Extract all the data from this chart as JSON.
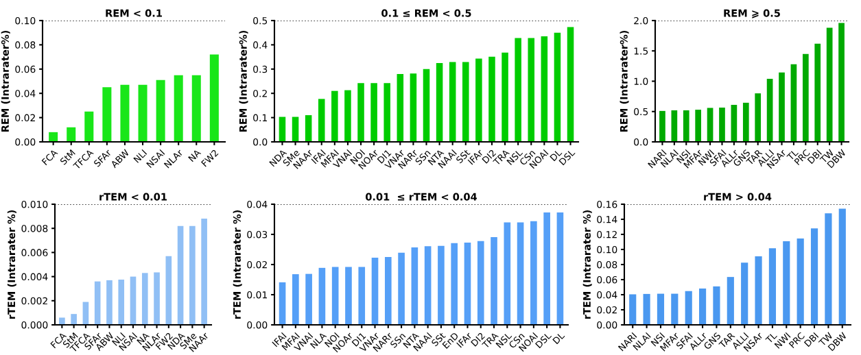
{
  "chart_data": [
    {
      "type": "bar",
      "title": "REM < 0.1",
      "ylabel": "REM (Intrarater%)",
      "color": "#19e619",
      "categories": [
        "FCA",
        "StM",
        "TFCA",
        "SFAr",
        "ABW",
        "NLI",
        "NSAI",
        "NLAr",
        "NA",
        "FW2"
      ],
      "values": [
        0.008,
        0.012,
        0.025,
        0.045,
        0.047,
        0.047,
        0.051,
        0.055,
        0.055,
        0.072
      ],
      "ylim": [
        0,
        0.1
      ],
      "yticks": [
        {
          "value": 0,
          "label": "0.00"
        },
        {
          "value": 0.02,
          "label": "0.02"
        },
        {
          "value": 0.04,
          "label": "0.04"
        },
        {
          "value": 0.06,
          "label": "0.06"
        },
        {
          "value": 0.08,
          "label": "0.08"
        },
        {
          "value": 0.1,
          "label": "0.10"
        }
      ],
      "ref_lines": [
        {
          "axis": "y",
          "value": 0.1,
          "line_style": "dotted",
          "color": "#000000"
        }
      ]
    },
    {
      "type": "bar",
      "title": "0.1 ≤ REM < 0.5",
      "ylabel": "REM (Intrarater%)",
      "color": "#00cc00",
      "categories": [
        "NDA",
        "SMe",
        "NAAr",
        "IFAI",
        "MFAI",
        "VNAI",
        "NOI",
        "NOAr",
        "DI1",
        "VNAr",
        "NARr",
        "SSn",
        "NTA",
        "NAAI",
        "SSt",
        "IFAr",
        "DI2",
        "TRA",
        "NSL",
        "CSn",
        "NOAI",
        "DL",
        "DSL"
      ],
      "values": [
        0.103,
        0.103,
        0.11,
        0.177,
        0.21,
        0.213,
        0.242,
        0.242,
        0.242,
        0.28,
        0.282,
        0.3,
        0.325,
        0.329,
        0.329,
        0.343,
        0.351,
        0.368,
        0.428,
        0.428,
        0.435,
        0.45,
        0.473
      ],
      "ylim": [
        0,
        0.5
      ],
      "yticks": [
        {
          "value": 0,
          "label": "0.0"
        },
        0.1,
        0.2,
        0.3,
        0.4,
        0.5
      ],
      "ref_lines": [
        {
          "axis": "y",
          "value": 0.5,
          "line_style": "dotted",
          "color": "#000000"
        }
      ]
    },
    {
      "type": "bar",
      "title": "REM ⩾ 0.5",
      "ylabel": "REM (Intrarater%)",
      "color": "#00aa00",
      "categories": [
        "NARI",
        "NLAI",
        "NSI",
        "MFAr",
        "NWI",
        "SFAI",
        "ALLr",
        "GNS",
        "TAR",
        "ALLI",
        "NSAr",
        "TL",
        "PRC",
        "DBI",
        "TW",
        "DBW"
      ],
      "values": [
        0.51,
        0.52,
        0.52,
        0.53,
        0.56,
        0.565,
        0.61,
        0.645,
        0.8,
        1.04,
        1.145,
        1.28,
        1.45,
        1.62,
        1.88,
        1.96
      ],
      "ylim": [
        0,
        2.0
      ],
      "yticks": [
        {
          "value": 0,
          "label": "0.0"
        },
        0.5,
        {
          "value": 1,
          "label": "1.0"
        },
        1.5,
        {
          "value": 2,
          "label": "2.0"
        }
      ],
      "ref_lines": [
        {
          "axis": "y",
          "value": 2.0,
          "line_style": "dotted",
          "color": "#000000"
        }
      ]
    },
    {
      "type": "bar",
      "title": "rTEM < 0.01",
      "ylabel": "rTEM (Intrarater %)",
      "color": "#90bff5",
      "categories": [
        "FCA",
        "StM",
        "TFCA",
        "SFAr",
        "ABW",
        "NLI",
        "NSAI",
        "NA",
        "NLAr",
        "FW2",
        "NDA",
        "SMe",
        "NAAr"
      ],
      "values": [
        0.0006,
        0.0009,
        0.0019,
        0.0036,
        0.0037,
        0.00375,
        0.004,
        0.0043,
        0.00435,
        0.0057,
        0.0082,
        0.0082,
        0.0088
      ],
      "ylim": [
        0,
        0.01
      ],
      "yticks": [
        {
          "value": 0,
          "label": "0.000"
        },
        {
          "value": 0.002,
          "label": "0.002"
        },
        {
          "value": 0.004,
          "label": "0.004"
        },
        {
          "value": 0.006,
          "label": "0.006"
        },
        {
          "value": 0.008,
          "label": "0.008"
        },
        {
          "value": 0.01,
          "label": "0.010"
        }
      ],
      "ref_lines": [
        {
          "axis": "y",
          "value": 0.01,
          "line_style": "dotted",
          "color": "#000000"
        }
      ]
    },
    {
      "type": "bar",
      "title": "0.01  ≤ rTEM < 0.04",
      "ylabel": "rTEM (Intrarater %)",
      "color": "#559ff7",
      "categories": [
        "IFAI",
        "MFAI",
        "VNAI",
        "NLA",
        "NOI",
        "NOAr",
        "DI1",
        "VNAr",
        "NARr",
        "SSn",
        "NTA",
        "NAAI",
        "SSt",
        "EnD",
        "IFAr",
        "DI2",
        "TRA",
        "NSL",
        "CSn",
        "NOAI",
        "DSL",
        "DL"
      ],
      "values": [
        0.0141,
        0.0168,
        0.0169,
        0.0189,
        0.0192,
        0.0192,
        0.0192,
        0.0223,
        0.0225,
        0.0239,
        0.0257,
        0.0261,
        0.0262,
        0.0271,
        0.0273,
        0.0278,
        0.0291,
        0.034,
        0.034,
        0.0344,
        0.0373,
        0.0373
      ],
      "ylim": [
        0,
        0.04
      ],
      "yticks": [
        {
          "value": 0,
          "label": "0.00"
        },
        0.01,
        0.02,
        0.03,
        0.04
      ],
      "ref_lines": [
        {
          "axis": "y",
          "value": 0.04,
          "line_style": "dotted",
          "color": "#000000"
        }
      ]
    },
    {
      "type": "bar",
      "title": "rTEM > 0.04",
      "ylabel": "rTEM (Intrarater %)",
      "color": "#4a98f0",
      "categories": [
        "NARI",
        "NLAI",
        "NSI",
        "MFAr",
        "SFAI",
        "ALLr",
        "GNS",
        "TAR",
        "ALLI",
        "NSAr",
        "TL",
        "NWI",
        "PRC",
        "DBI",
        "TW",
        "DBW"
      ],
      "values": [
        0.0405,
        0.041,
        0.0413,
        0.0413,
        0.0448,
        0.0482,
        0.051,
        0.0635,
        0.0825,
        0.091,
        0.1015,
        0.111,
        0.1145,
        0.128,
        0.148,
        0.154
      ],
      "ylim": [
        0,
        0.16
      ],
      "yticks": [
        {
          "value": 0,
          "label": "0.00"
        },
        {
          "value": 0.02,
          "label": "0.02"
        },
        {
          "value": 0.04,
          "label": "0.04"
        },
        {
          "value": 0.06,
          "label": "0.06"
        },
        {
          "value": 0.08,
          "label": "0.08"
        },
        {
          "value": 0.1,
          "label": "0.10"
        },
        {
          "value": 0.12,
          "label": "0.12"
        },
        {
          "value": 0.14,
          "label": "0.14"
        },
        {
          "value": 0.16,
          "label": "0.16"
        }
      ],
      "ref_lines": [
        {
          "axis": "y",
          "value": 0.16,
          "line_style": "dotted",
          "color": "#000000"
        }
      ]
    }
  ]
}
